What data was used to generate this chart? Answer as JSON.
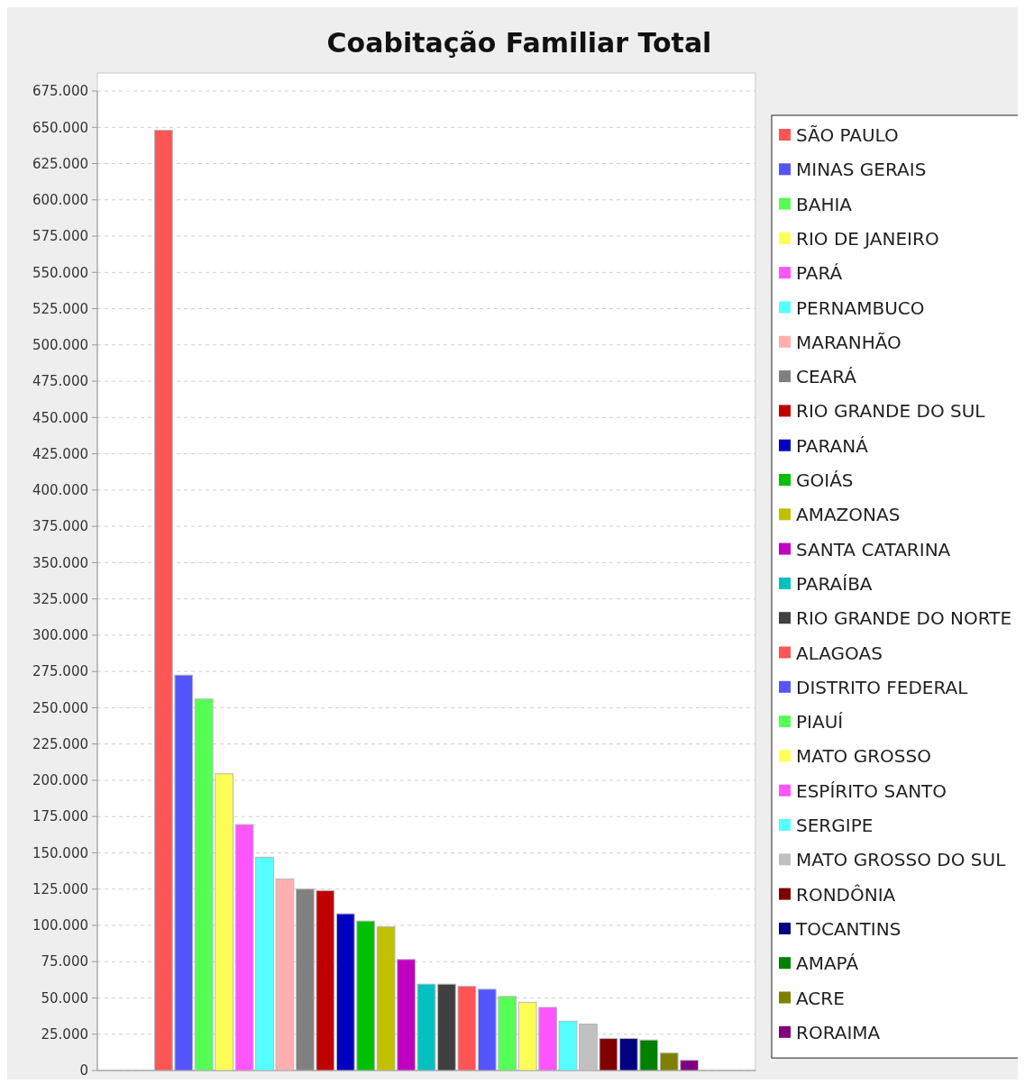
{
  "chart_data": {
    "type": "bar",
    "title": "Coabitação Familiar Total",
    "categories": [
      null
    ],
    "series": [
      {
        "name": "SÃO PAULO",
        "color": "#ff5555",
        "values": [
          648000
        ]
      },
      {
        "name": "MINAS GERAIS",
        "color": "#5555ff",
        "values": [
          272500
        ]
      },
      {
        "name": "BAHIA",
        "color": "#55ff55",
        "values": [
          256000
        ]
      },
      {
        "name": "RIO DE JANEIRO",
        "color": "#ffff55",
        "values": [
          204500
        ]
      },
      {
        "name": "PARÁ",
        "color": "#ff55ff",
        "values": [
          169500
        ]
      },
      {
        "name": "PERNAMBUCO",
        "color": "#55ffff",
        "values": [
          147000
        ]
      },
      {
        "name": "MARANHÃO",
        "color": "#ffafaf",
        "values": [
          132000
        ]
      },
      {
        "name": "CEARÁ",
        "color": "#808080",
        "values": [
          125000
        ]
      },
      {
        "name": "RIO GRANDE DO SUL",
        "color": "#c00000",
        "values": [
          124000
        ]
      },
      {
        "name": "PARANÁ",
        "color": "#0000c0",
        "values": [
          108000
        ]
      },
      {
        "name": "GOIÁS",
        "color": "#00c000",
        "values": [
          103000
        ]
      },
      {
        "name": "AMAZONAS",
        "color": "#c0c000",
        "values": [
          99000
        ]
      },
      {
        "name": "SANTA CATARINA",
        "color": "#c000c0",
        "values": [
          76500
        ]
      },
      {
        "name": "PARAÍBA",
        "color": "#00c0c0",
        "values": [
          59500
        ]
      },
      {
        "name": "RIO GRANDE DO NORTE",
        "color": "#404040",
        "values": [
          59500
        ]
      },
      {
        "name": "ALAGOAS",
        "color": "#ff5555",
        "values": [
          58000
        ]
      },
      {
        "name": "DISTRITO FEDERAL",
        "color": "#5555ff",
        "values": [
          56000
        ]
      },
      {
        "name": "PIAUÍ",
        "color": "#55ff55",
        "values": [
          51000
        ]
      },
      {
        "name": "MATO GROSSO",
        "color": "#ffff55",
        "values": [
          47000
        ]
      },
      {
        "name": "ESPÍRITO SANTO",
        "color": "#ff55ff",
        "values": [
          43500
        ]
      },
      {
        "name": "SERGIPE",
        "color": "#55ffff",
        "values": [
          34000
        ]
      },
      {
        "name": "MATO GROSSO DO SUL",
        "color": "#c0c0c0",
        "values": [
          32000
        ]
      },
      {
        "name": "RONDÔNIA",
        "color": "#800000",
        "values": [
          22000
        ]
      },
      {
        "name": "TOCANTINS",
        "color": "#000080",
        "values": [
          22000
        ]
      },
      {
        "name": "AMAPÁ",
        "color": "#008000",
        "values": [
          21000
        ]
      },
      {
        "name": "ACRE",
        "color": "#808000",
        "values": [
          12000
        ]
      },
      {
        "name": "RORAIMA",
        "color": "#800080",
        "values": [
          7000
        ]
      }
    ],
    "ylim": [
      0,
      675000
    ],
    "yticks": [
      {
        "value": 0,
        "label": "0"
      },
      {
        "value": 25000,
        "label": "25.000"
      },
      {
        "value": 50000,
        "label": "50.000"
      },
      {
        "value": 75000,
        "label": "75.000"
      },
      {
        "value": 100000,
        "label": "100.000"
      },
      {
        "value": 125000,
        "label": "125.000"
      },
      {
        "value": 150000,
        "label": "150.000"
      },
      {
        "value": 175000,
        "label": "175.000"
      },
      {
        "value": 200000,
        "label": "200.000"
      },
      {
        "value": 225000,
        "label": "225.000"
      },
      {
        "value": 250000,
        "label": "250.000"
      },
      {
        "value": 275000,
        "label": "275.000"
      },
      {
        "value": 300000,
        "label": "300.000"
      },
      {
        "value": 325000,
        "label": "325.000"
      },
      {
        "value": 350000,
        "label": "350.000"
      },
      {
        "value": 375000,
        "label": "375.000"
      },
      {
        "value": 400000,
        "label": "400.000"
      },
      {
        "value": 425000,
        "label": "425.000"
      },
      {
        "value": 450000,
        "label": "450.000"
      },
      {
        "value": 475000,
        "label": "475.000"
      },
      {
        "value": 500000,
        "label": "500.000"
      },
      {
        "value": 525000,
        "label": "525.000"
      },
      {
        "value": 550000,
        "label": "550.000"
      },
      {
        "value": 575000,
        "label": "575.000"
      },
      {
        "value": 600000,
        "label": "600.000"
      },
      {
        "value": 625000,
        "label": "625.000"
      },
      {
        "value": 650000,
        "label": "650.000"
      },
      {
        "value": 675000,
        "label": "675.000"
      }
    ],
    "grid": "y",
    "legend": "right"
  }
}
